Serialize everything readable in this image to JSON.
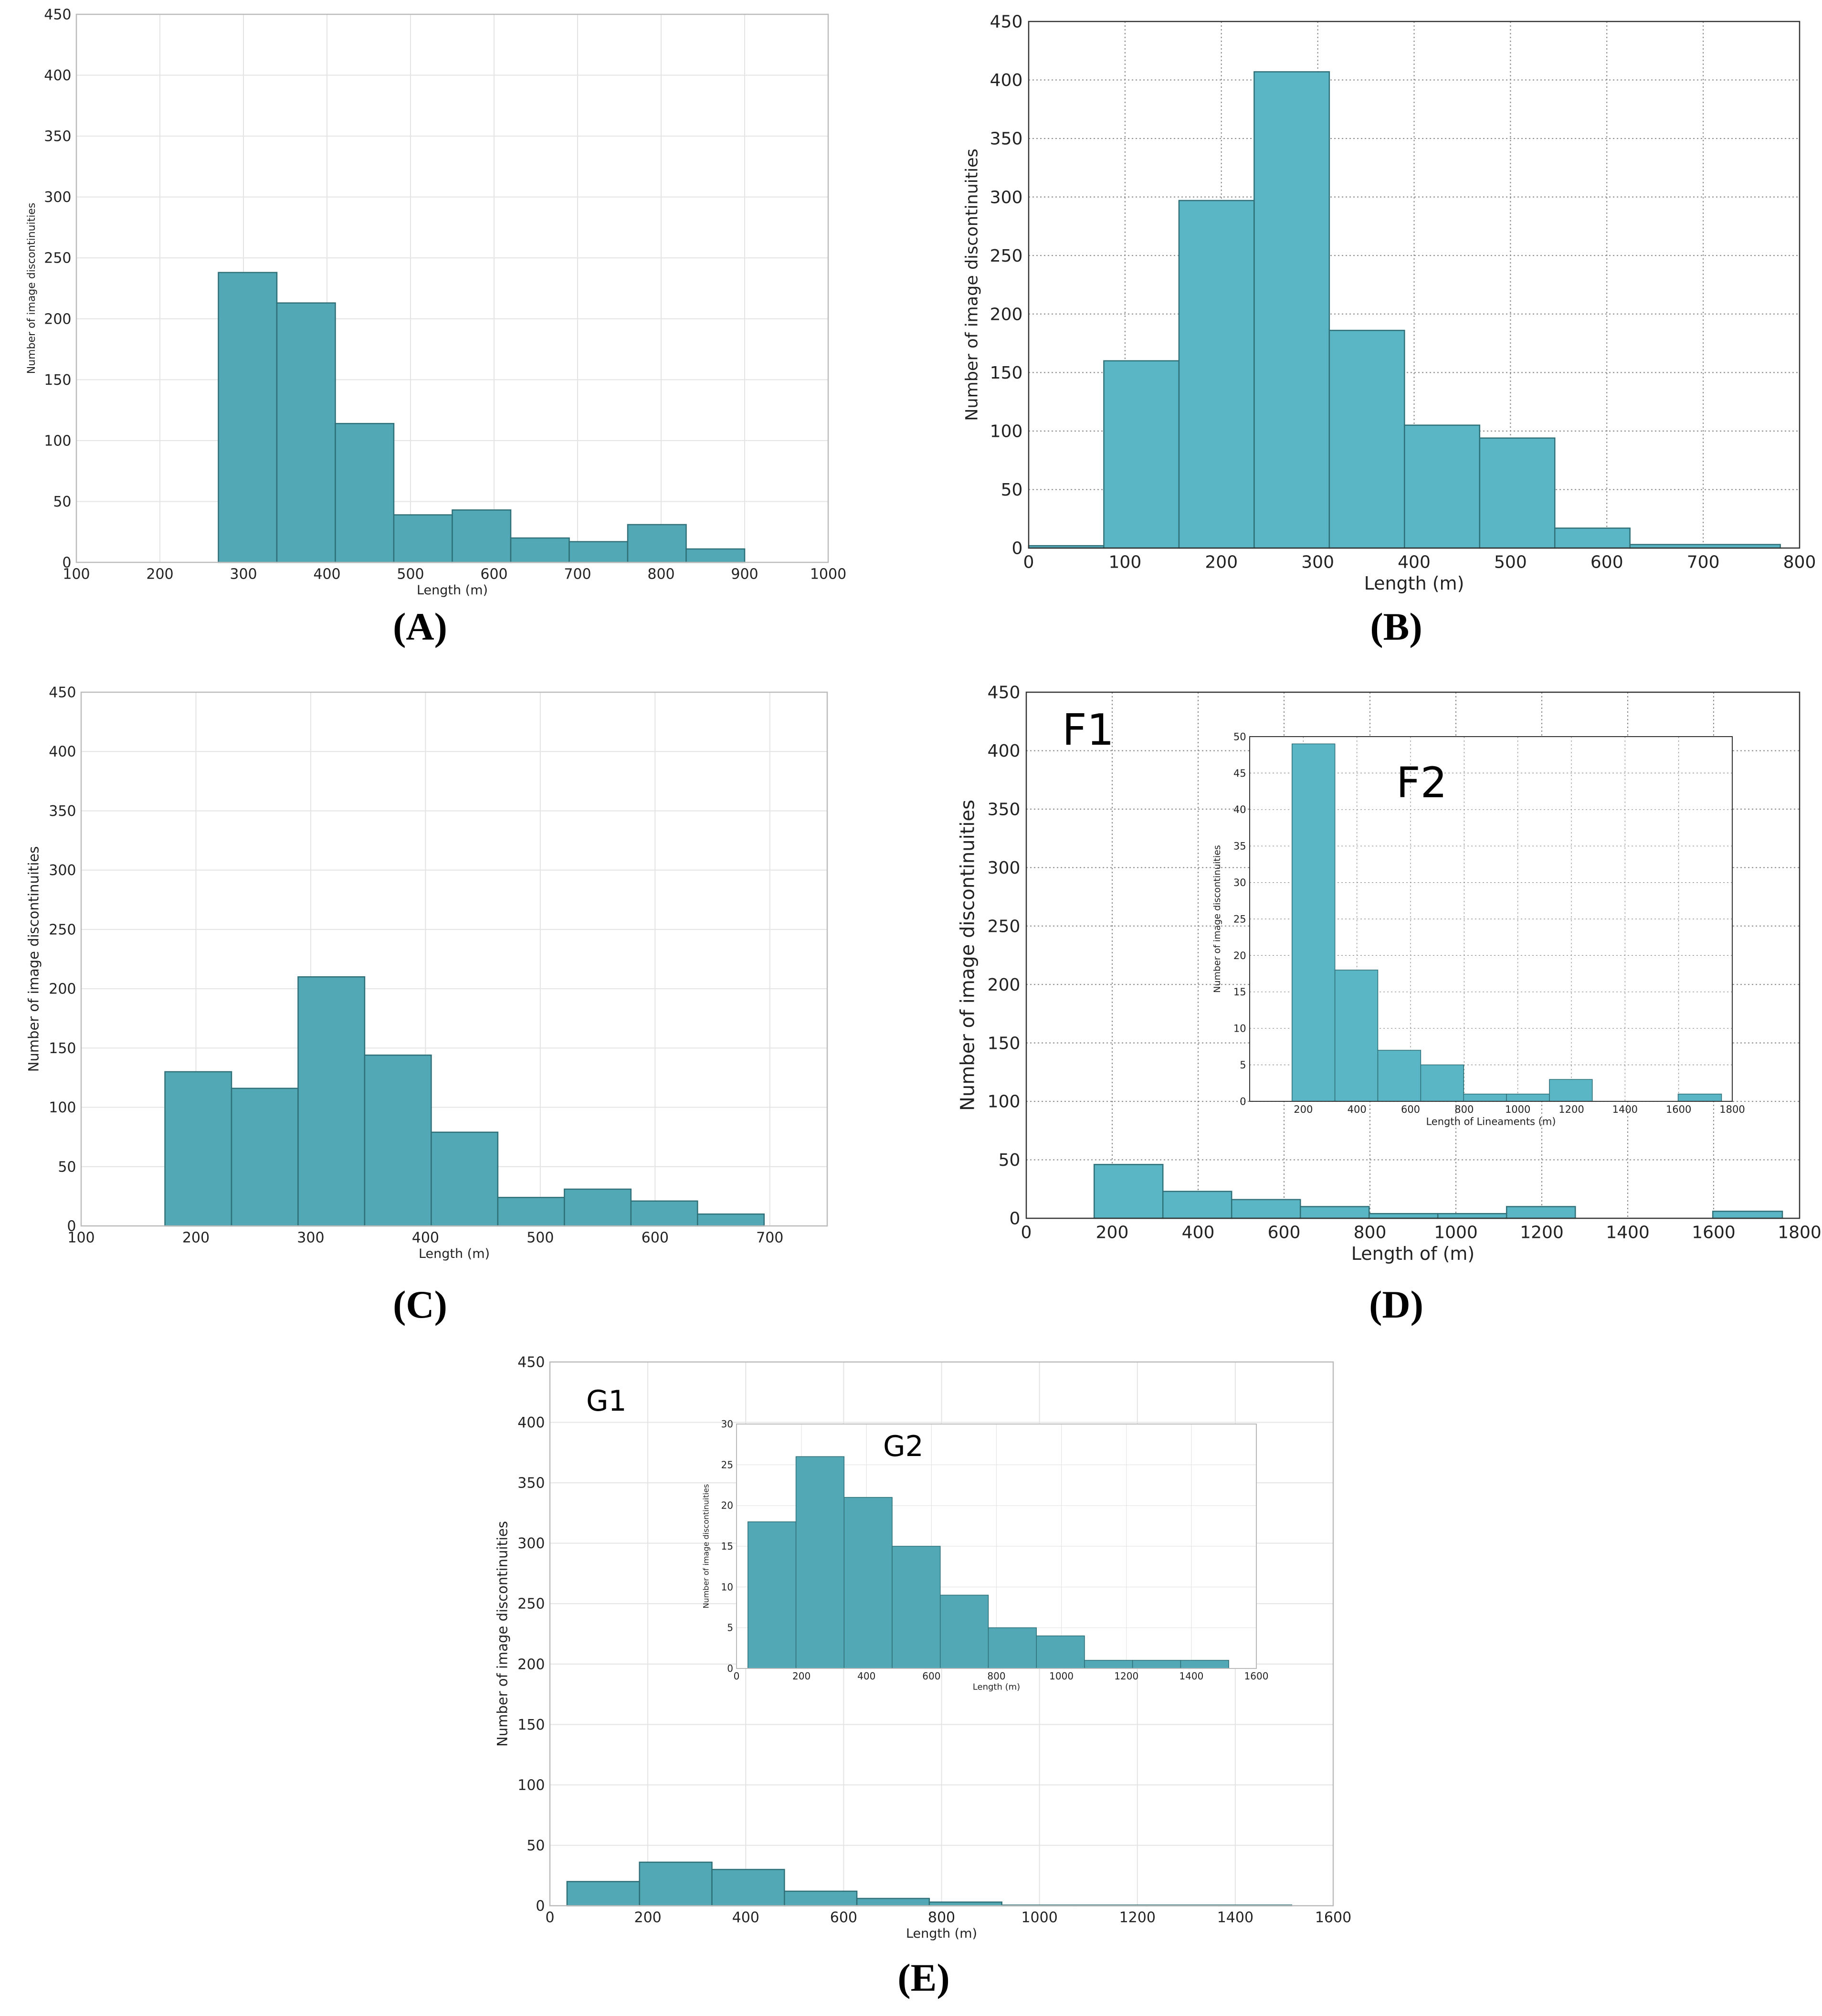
{
  "figure": {
    "colors": {
      "bar": "#52a9b5",
      "bar_bright": "#5ab6c5",
      "bar_edge": "#2e6f78",
      "grid": "#bfbfbf",
      "axis": "#555555"
    }
  },
  "chart_data": [
    {
      "id": "A",
      "panel_label": "(A)",
      "type": "bar",
      "subtype": "histogram",
      "xlabel": "Length (m)",
      "ylabel": "Number of image discontinuities",
      "xlim": [
        100,
        1000
      ],
      "ylim": [
        0,
        450
      ],
      "xticks": [
        "100",
        "200",
        "300",
        "400",
        "500",
        "600",
        "700",
        "800",
        "900",
        "1000"
      ],
      "yticks": [
        "0",
        "50",
        "100",
        "150",
        "200",
        "250",
        "300",
        "350",
        "400",
        "450"
      ],
      "bins": [
        [
          270,
          340
        ],
        [
          340,
          410
        ],
        [
          410,
          480
        ],
        [
          480,
          550
        ],
        [
          550,
          620
        ],
        [
          620,
          690
        ],
        [
          690,
          760
        ],
        [
          760,
          830
        ],
        [
          830,
          900
        ]
      ],
      "values": [
        238,
        213,
        114,
        39,
        43,
        20,
        17,
        31,
        11
      ]
    },
    {
      "id": "B",
      "panel_label": "(B)",
      "type": "bar",
      "subtype": "histogram",
      "xlabel": "Length (m)",
      "ylabel": "Number of image discontinuities",
      "xlim": [
        0,
        800
      ],
      "ylim": [
        0,
        450
      ],
      "xticks": [
        "0",
        "100",
        "200",
        "300",
        "400",
        "500",
        "600",
        "700",
        "800"
      ],
      "yticks": [
        "0",
        "50",
        "100",
        "150",
        "200",
        "250",
        "300",
        "350",
        "400",
        "450"
      ],
      "bins": [
        [
          0,
          78
        ],
        [
          78,
          156
        ],
        [
          156,
          234
        ],
        [
          234,
          312
        ],
        [
          312,
          390
        ],
        [
          390,
          468
        ],
        [
          468,
          546
        ],
        [
          546,
          624
        ],
        [
          624,
          780
        ]
      ],
      "values": [
        2,
        160,
        297,
        407,
        186,
        105,
        94,
        17,
        3
      ]
    },
    {
      "id": "C",
      "panel_label": "(C)",
      "type": "bar",
      "subtype": "histogram",
      "xlabel": "Length (m)",
      "ylabel": "Number of image discontinuities",
      "xlim": [
        100,
        750
      ],
      "ylim": [
        0,
        450
      ],
      "xticks": [
        "100",
        "200",
        "300",
        "400",
        "500",
        "600",
        "700"
      ],
      "yticks": [
        "0",
        "50",
        "100",
        "150",
        "200",
        "250",
        "300",
        "350",
        "400",
        "450"
      ],
      "bins": [
        [
          173,
          231
        ],
        [
          231,
          289
        ],
        [
          289,
          347
        ],
        [
          347,
          405
        ],
        [
          405,
          463
        ],
        [
          463,
          521
        ],
        [
          521,
          579
        ],
        [
          579,
          637
        ],
        [
          637,
          695
        ]
      ],
      "values": [
        130,
        116,
        210,
        144,
        79,
        24,
        31,
        21,
        10
      ]
    },
    {
      "id": "D",
      "panel_label": "(D)",
      "inset_tag": "F1",
      "type": "bar",
      "subtype": "histogram",
      "xlabel": "Length of (m)",
      "ylabel": "Number of image discontinuities",
      "xlim": [
        0,
        1800
      ],
      "ylim": [
        0,
        450
      ],
      "xticks": [
        "0",
        "200",
        "400",
        "600",
        "800",
        "1000",
        "1200",
        "1400",
        "1600",
        "1800"
      ],
      "yticks": [
        "0",
        "50",
        "100",
        "150",
        "200",
        "250",
        "300",
        "350",
        "400",
        "450"
      ],
      "bins": [
        [
          158,
          318
        ],
        [
          318,
          478
        ],
        [
          478,
          638
        ],
        [
          638,
          798
        ],
        [
          798,
          958
        ],
        [
          958,
          1118
        ],
        [
          1118,
          1278
        ],
        [
          1278,
          1438
        ],
        [
          1438,
          1598
        ],
        [
          1598,
          1760
        ]
      ],
      "values": [
        46,
        23,
        16,
        10,
        4,
        4,
        10,
        0,
        0,
        6
      ]
    },
    {
      "id": "D-inset",
      "inset_tag": "F2",
      "type": "bar",
      "subtype": "histogram",
      "xlabel": "Length of Lineaments (m)",
      "ylabel": "Number of image discontinuities",
      "xlim": [
        0,
        1800
      ],
      "ylim": [
        0,
        50
      ],
      "xticks": [
        "200",
        "400",
        "600",
        "800",
        "1000",
        "1200",
        "1400",
        "1600",
        "1800"
      ],
      "yticks": [
        "0",
        "5",
        "10",
        "15",
        "20",
        "25",
        "30",
        "35",
        "40",
        "45",
        "50"
      ],
      "bins": [
        [
          158,
          318
        ],
        [
          318,
          478
        ],
        [
          478,
          638
        ],
        [
          638,
          798
        ],
        [
          798,
          958
        ],
        [
          958,
          1118
        ],
        [
          1118,
          1278
        ],
        [
          1278,
          1438
        ],
        [
          1438,
          1598
        ],
        [
          1598,
          1760
        ]
      ],
      "values": [
        49,
        18,
        7,
        5,
        1,
        1,
        3,
        0,
        0,
        1
      ]
    },
    {
      "id": "E",
      "panel_label": "(E)",
      "inset_tag": "G1",
      "type": "bar",
      "subtype": "histogram",
      "xlabel": "Length (m)",
      "ylabel": "Number of image discontinuities",
      "xlim": [
        0,
        1600
      ],
      "ylim": [
        0,
        450
      ],
      "xticks": [
        "0",
        "200",
        "400",
        "600",
        "800",
        "1000",
        "1200",
        "1400",
        "1600"
      ],
      "yticks": [
        "0",
        "50",
        "100",
        "150",
        "200",
        "250",
        "300",
        "350",
        "400",
        "450"
      ],
      "bins": [
        [
          35,
          183
        ],
        [
          183,
          331
        ],
        [
          331,
          479
        ],
        [
          479,
          627
        ],
        [
          627,
          775
        ],
        [
          775,
          923
        ],
        [
          923,
          1071
        ],
        [
          1071,
          1219
        ],
        [
          1219,
          1367
        ],
        [
          1367,
          1515
        ]
      ],
      "values": [
        20,
        36,
        30,
        12,
        6,
        3,
        0.5,
        0.5,
        0.5,
        0.5
      ]
    },
    {
      "id": "E-inset",
      "inset_tag": "G2",
      "type": "bar",
      "subtype": "histogram",
      "xlabel": "Length (m)",
      "ylabel": "Number of image discontinuities",
      "xlim": [
        0,
        1600
      ],
      "ylim": [
        0,
        30
      ],
      "xticks": [
        "0",
        "200",
        "400",
        "600",
        "800",
        "1000",
        "1200",
        "1400",
        "1600"
      ],
      "yticks": [
        "0",
        "5",
        "10",
        "15",
        "20",
        "25",
        "30"
      ],
      "bins": [
        [
          35,
          183
        ],
        [
          183,
          331
        ],
        [
          331,
          479
        ],
        [
          479,
          627
        ],
        [
          627,
          775
        ],
        [
          775,
          923
        ],
        [
          923,
          1071
        ],
        [
          1071,
          1219
        ],
        [
          1219,
          1367
        ],
        [
          1367,
          1515
        ]
      ],
      "values": [
        18,
        26,
        21,
        15,
        9,
        5,
        4,
        1,
        1,
        1
      ]
    }
  ]
}
